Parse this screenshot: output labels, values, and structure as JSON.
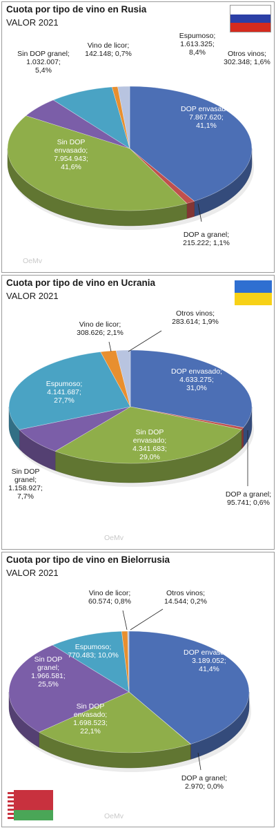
{
  "colors": {
    "dop_envasado": "#4c6fb5",
    "dop_granel": "#c0504d",
    "sin_dop_envasado": "#8fae4a",
    "sin_dop_granel": "#7b5ea8",
    "espumoso": "#4aa3c4",
    "vino_licor": "#e88f2f",
    "otros_vinos": "#b8c4e0"
  },
  "logo_text": "OeMv",
  "chart_data": [
    {
      "type": "pie",
      "title": "Cuota por tipo de vino en Rusia",
      "subtitle": "VALOR 2021",
      "flag": "russia-flag",
      "slices": [
        {
          "name": "DOP envasado",
          "value_text": "7.867.620",
          "pct_text": "41,1%",
          "value": 7867620,
          "pct": 41.1,
          "color_key": "dop_envasado"
        },
        {
          "name": "DOP a granel",
          "value_text": "215.222",
          "pct_text": "1,1%",
          "value": 215222,
          "pct": 1.1,
          "color_key": "dop_granel"
        },
        {
          "name": "Sin DOP envasado",
          "value_text": "7.954.943",
          "pct_text": "41,6%",
          "value": 7954943,
          "pct": 41.6,
          "color_key": "sin_dop_envasado"
        },
        {
          "name": "Sin DOP granel",
          "value_text": "1.032.007",
          "pct_text": "5,4%",
          "value": 1032007,
          "pct": 5.4,
          "color_key": "sin_dop_granel"
        },
        {
          "name": "Espumoso",
          "value_text": "1.613.325",
          "pct_text": "8,4%",
          "value": 1613325,
          "pct": 8.4,
          "color_key": "espumoso"
        },
        {
          "name": "Vino de licor",
          "value_text": "142.148",
          "pct_text": "0,7%",
          "value": 142148,
          "pct": 0.7,
          "color_key": "vino_licor"
        },
        {
          "name": "Otros vinos",
          "value_text": "302.348",
          "pct_text": "1,6%",
          "value": 302348,
          "pct": 1.6,
          "color_key": "otros_vinos"
        }
      ]
    },
    {
      "type": "pie",
      "title": "Cuota por tipo de vino en Ucrania",
      "subtitle": "VALOR 2021",
      "flag": "ukraine-flag",
      "slices": [
        {
          "name": "DOP envasado",
          "value_text": "4.633.275",
          "pct_text": "31,0%",
          "value": 4633275,
          "pct": 31.0,
          "color_key": "dop_envasado"
        },
        {
          "name": "DOP a granel",
          "value_text": "95.741",
          "pct_text": "0,6%",
          "value": 95741,
          "pct": 0.6,
          "color_key": "dop_granel"
        },
        {
          "name": "Sin DOP envasado",
          "value_text": "4.341.683",
          "pct_text": "29,0%",
          "value": 4341683,
          "pct": 29.0,
          "color_key": "sin_dop_envasado"
        },
        {
          "name": "Sin DOP granel",
          "value_text": "1.158.927",
          "pct_text": "7,7%",
          "value": 1158927,
          "pct": 7.7,
          "color_key": "sin_dop_granel"
        },
        {
          "name": "Espumoso",
          "value_text": "4.141.687",
          "pct_text": "27,7%",
          "value": 4141687,
          "pct": 27.7,
          "color_key": "espumoso"
        },
        {
          "name": "Vino de licor",
          "value_text": "308.626",
          "pct_text": "2,1%",
          "value": 308626,
          "pct": 2.1,
          "color_key": "vino_licor"
        },
        {
          "name": "Otros vinos",
          "value_text": "283.614",
          "pct_text": "1,9%",
          "value": 283614,
          "pct": 1.9,
          "color_key": "otros_vinos"
        }
      ]
    },
    {
      "type": "pie",
      "title": "Cuota por tipo de vino en Bielorrusia",
      "subtitle": "VALOR 2021",
      "flag": "belarus-flag",
      "slices": [
        {
          "name": "DOP envasado",
          "value_text": "3.189.052",
          "pct_text": "41,4%",
          "value": 3189052,
          "pct": 41.4,
          "color_key": "dop_envasado"
        },
        {
          "name": "DOP a granel",
          "value_text": "2.970",
          "pct_text": "0,0%",
          "value": 2970,
          "pct": 0.0,
          "color_key": "dop_granel"
        },
        {
          "name": "Sin DOP envasado",
          "value_text": "1.698.523",
          "pct_text": "22,1%",
          "value": 1698523,
          "pct": 22.1,
          "color_key": "sin_dop_envasado"
        },
        {
          "name": "Sin DOP granel",
          "value_text": "1.966.581",
          "pct_text": "25,5%",
          "value": 1966581,
          "pct": 25.5,
          "color_key": "sin_dop_granel"
        },
        {
          "name": "Espumoso",
          "value_text": "770.483",
          "pct_text": "10,0%",
          "value": 770483,
          "pct": 10.0,
          "color_key": "espumoso"
        },
        {
          "name": "Vino de licor",
          "value_text": "60.574",
          "pct_text": "0,8%",
          "value": 60574,
          "pct": 0.8,
          "color_key": "vino_licor"
        },
        {
          "name": "Otros vinos",
          "value_text": "14.544",
          "pct_text": "0,2%",
          "value": 14544,
          "pct": 0.2,
          "color_key": "otros_vinos"
        }
      ]
    }
  ]
}
